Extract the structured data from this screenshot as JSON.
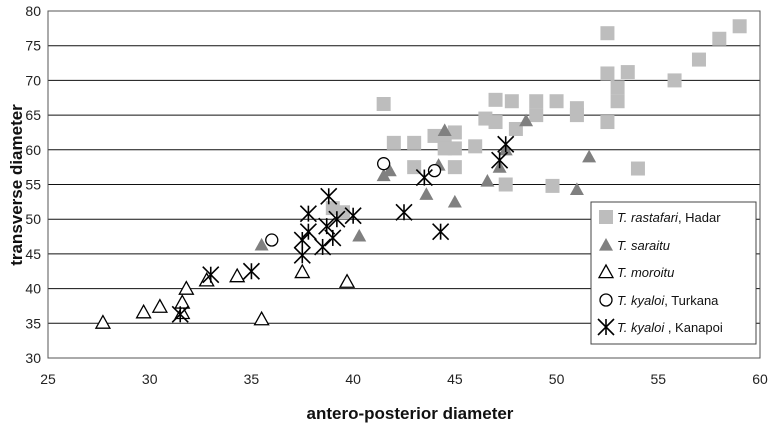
{
  "chart_data": {
    "type": "scatter",
    "title": "",
    "xlabel": "antero-posterior diameter",
    "ylabel": "transverse diameter",
    "xlim": [
      25,
      60
    ],
    "ylim": [
      30,
      80
    ],
    "xticks": [
      "25",
      "30",
      "35",
      "40",
      "45",
      "50",
      "55",
      "60"
    ],
    "yticks": [
      "30",
      "35",
      "40",
      "45",
      "50",
      "55",
      "60",
      "65",
      "70",
      "75",
      "80"
    ],
    "grid": "horizontal",
    "legend_position": "bottom-right",
    "series": [
      {
        "legend_italic": "T. rastafari",
        "legend_rest": ", Hadar",
        "marker": "square-filled",
        "color": "#bdbdbd",
        "points": [
          [
            41.5,
            66.6
          ],
          [
            42,
            61
          ],
          [
            43,
            61
          ],
          [
            43,
            57.5
          ],
          [
            44,
            62
          ],
          [
            44.5,
            61
          ],
          [
            44.5,
            60.2
          ],
          [
            45,
            60.2
          ],
          [
            45,
            62.5
          ],
          [
            45,
            57.5
          ],
          [
            46,
            60.5
          ],
          [
            46.5,
            64.5
          ],
          [
            47,
            67.2
          ],
          [
            47,
            64
          ],
          [
            47.5,
            55
          ],
          [
            47.8,
            67
          ],
          [
            48,
            63
          ],
          [
            49,
            67
          ],
          [
            49,
            65
          ],
          [
            49.8,
            54.8
          ],
          [
            50,
            67
          ],
          [
            51,
            66
          ],
          [
            51,
            65
          ],
          [
            52.5,
            76.8
          ],
          [
            52.5,
            71
          ],
          [
            52.5,
            64
          ],
          [
            53,
            69
          ],
          [
            53,
            67
          ],
          [
            53.5,
            71.2
          ],
          [
            54,
            57.3
          ],
          [
            55.8,
            70
          ],
          [
            57,
            73
          ],
          [
            58,
            76
          ],
          [
            59,
            77.8
          ],
          [
            39,
            51.6
          ],
          [
            39.5,
            51
          ]
        ]
      },
      {
        "legend_italic": "T. saraitu",
        "legend_rest": "",
        "marker": "triangle-filled",
        "color": "#808080",
        "points": [
          [
            35.5,
            46.3
          ],
          [
            40.3,
            47.6
          ],
          [
            41.5,
            56.3
          ],
          [
            41.8,
            57
          ],
          [
            43.6,
            53.6
          ],
          [
            44.2,
            57.8
          ],
          [
            44.5,
            62.8
          ],
          [
            45,
            52.5
          ],
          [
            46.6,
            55.5
          ],
          [
            47.2,
            57.5
          ],
          [
            47.5,
            60
          ],
          [
            48.5,
            64.2
          ],
          [
            51,
            54.3
          ],
          [
            51.6,
            59
          ]
        ]
      },
      {
        "legend_italic": "T. moroitu",
        "legend_rest": "",
        "marker": "triangle-open",
        "color": "#000000",
        "points": [
          [
            27.7,
            35.1
          ],
          [
            29.7,
            36.6
          ],
          [
            30.5,
            37.4
          ],
          [
            31.6,
            36.5
          ],
          [
            31.6,
            38
          ],
          [
            31.8,
            40
          ],
          [
            32.8,
            41.2
          ],
          [
            34.3,
            41.8
          ],
          [
            35.5,
            35.6
          ],
          [
            37.5,
            42.4
          ],
          [
            39.7,
            41
          ]
        ]
      },
      {
        "legend_italic": "T. kyaloi",
        "legend_rest": ", Turkana",
        "marker": "circle-open",
        "color": "#000000",
        "points": [
          [
            36,
            47
          ],
          [
            41.5,
            58
          ],
          [
            44,
            57
          ]
        ]
      },
      {
        "legend_italic": "T. kyaloi",
        "legend_rest": " , Kanapoi",
        "marker": "asterisk",
        "color": "#000000",
        "points": [
          [
            31.5,
            36.3
          ],
          [
            33,
            42
          ],
          [
            35,
            42.5
          ],
          [
            37.5,
            47
          ],
          [
            37.5,
            44.8
          ],
          [
            37.8,
            48.2
          ],
          [
            37.8,
            50.8
          ],
          [
            38.5,
            46
          ],
          [
            38.7,
            49
          ],
          [
            38.8,
            53.3
          ],
          [
            39,
            47.3
          ],
          [
            39.2,
            50
          ],
          [
            40,
            50.5
          ],
          [
            42.5,
            51
          ],
          [
            43.5,
            56
          ],
          [
            44.3,
            48.2
          ],
          [
            47.2,
            58.5
          ],
          [
            47.5,
            60.8
          ]
        ]
      }
    ]
  }
}
